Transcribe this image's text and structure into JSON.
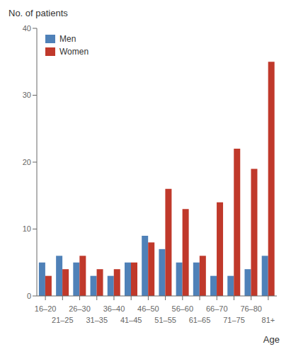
{
  "chart_data": {
    "type": "bar",
    "xlabel": "Age",
    "ylabel": "No. of patients",
    "categories": [
      "16–20",
      "21–25",
      "26–30",
      "31–35",
      "36–40",
      "41–45",
      "46–50",
      "51–55",
      "56–60",
      "61–65",
      "66–70",
      "71–75",
      "76–80",
      "81+"
    ],
    "series": [
      {
        "name": "Men",
        "color": "#4f81b8",
        "values": [
          5,
          6,
          5,
          3,
          3,
          5,
          9,
          7,
          5,
          5,
          3,
          3,
          4,
          6
        ]
      },
      {
        "name": "Women",
        "color": "#c0392b",
        "values": [
          3,
          4,
          6,
          4,
          4,
          5,
          8,
          16,
          13,
          6,
          14,
          22,
          19,
          35
        ]
      }
    ],
    "ylim": [
      0,
      40
    ],
    "yticks": [
      0,
      10,
      20,
      30,
      40
    ],
    "legend": "upper left",
    "grid": false
  }
}
